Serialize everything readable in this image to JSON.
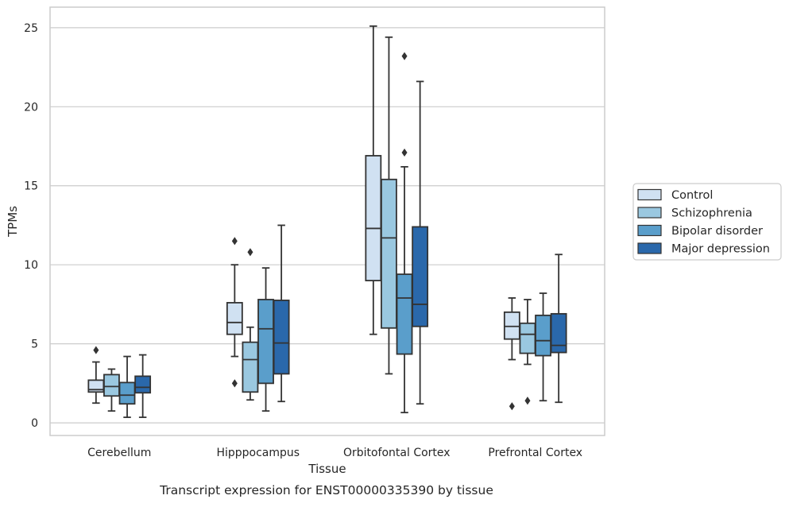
{
  "chart_data": {
    "type": "box",
    "xlabel": "Tissue",
    "ylabel": "TPMs",
    "caption": "Transcript expression for ENST00000335390 by tissue",
    "ylim": [
      -0.8,
      26.3
    ],
    "yticks": [
      0,
      5,
      10,
      15,
      20,
      25
    ],
    "grid": "horizontal",
    "legend_position": "right",
    "categories": [
      "Cerebellum",
      "Hipppocampus",
      "Orbitofontal Cortex",
      "Prefrontal Cortex"
    ],
    "series": [
      {
        "name": "Control",
        "color": "#d0e1f2",
        "boxes": [
          {
            "q1": 1.95,
            "median": 2.1,
            "q3": 2.7,
            "whislo": 1.25,
            "whishi": 3.85,
            "fliers": [
              4.6
            ]
          },
          {
            "q1": 5.6,
            "median": 6.35,
            "q3": 7.6,
            "whislo": 4.2,
            "whishi": 10.0,
            "fliers": [
              11.5,
              2.5
            ]
          },
          {
            "q1": 9.0,
            "median": 12.3,
            "q3": 16.9,
            "whislo": 5.6,
            "whishi": 25.1,
            "fliers": []
          },
          {
            "q1": 5.3,
            "median": 6.1,
            "q3": 7.0,
            "whislo": 4.0,
            "whishi": 7.9,
            "fliers": [
              1.05
            ]
          }
        ]
      },
      {
        "name": "Schizophrenia",
        "color": "#9ac8e0",
        "boxes": [
          {
            "q1": 1.7,
            "median": 2.3,
            "q3": 3.05,
            "whislo": 0.75,
            "whishi": 3.4,
            "fliers": []
          },
          {
            "q1": 1.95,
            "median": 4.0,
            "q3": 5.1,
            "whislo": 1.45,
            "whishi": 6.05,
            "fliers": [
              10.8
            ]
          },
          {
            "q1": 6.0,
            "median": 11.7,
            "q3": 15.4,
            "whislo": 3.1,
            "whishi": 24.4,
            "fliers": []
          },
          {
            "q1": 4.4,
            "median": 5.6,
            "q3": 6.3,
            "whislo": 3.7,
            "whishi": 7.8,
            "fliers": [
              1.4
            ]
          }
        ]
      },
      {
        "name": "Bipolar disorder",
        "color": "#5a9ecb",
        "boxes": [
          {
            "q1": 1.2,
            "median": 1.75,
            "q3": 2.55,
            "whislo": 0.35,
            "whishi": 4.2,
            "fliers": []
          },
          {
            "q1": 2.5,
            "median": 5.95,
            "q3": 7.8,
            "whislo": 0.75,
            "whishi": 9.8,
            "fliers": []
          },
          {
            "q1": 4.35,
            "median": 7.9,
            "q3": 9.4,
            "whislo": 0.65,
            "whishi": 16.2,
            "fliers": [
              23.2,
              17.1
            ]
          },
          {
            "q1": 4.25,
            "median": 5.2,
            "q3": 6.8,
            "whislo": 1.4,
            "whishi": 8.2,
            "fliers": []
          }
        ]
      },
      {
        "name": "Major depression",
        "color": "#2a68ab",
        "boxes": [
          {
            "q1": 1.9,
            "median": 2.25,
            "q3": 2.95,
            "whislo": 0.35,
            "whishi": 4.3,
            "fliers": []
          },
          {
            "q1": 3.1,
            "median": 5.05,
            "q3": 7.75,
            "whislo": 1.35,
            "whishi": 12.5,
            "fliers": []
          },
          {
            "q1": 6.1,
            "median": 7.5,
            "q3": 12.4,
            "whislo": 1.2,
            "whishi": 21.6,
            "fliers": []
          },
          {
            "q1": 4.45,
            "median": 4.9,
            "q3": 6.9,
            "whislo": 1.3,
            "whishi": 10.65,
            "fliers": []
          }
        ]
      }
    ]
  }
}
